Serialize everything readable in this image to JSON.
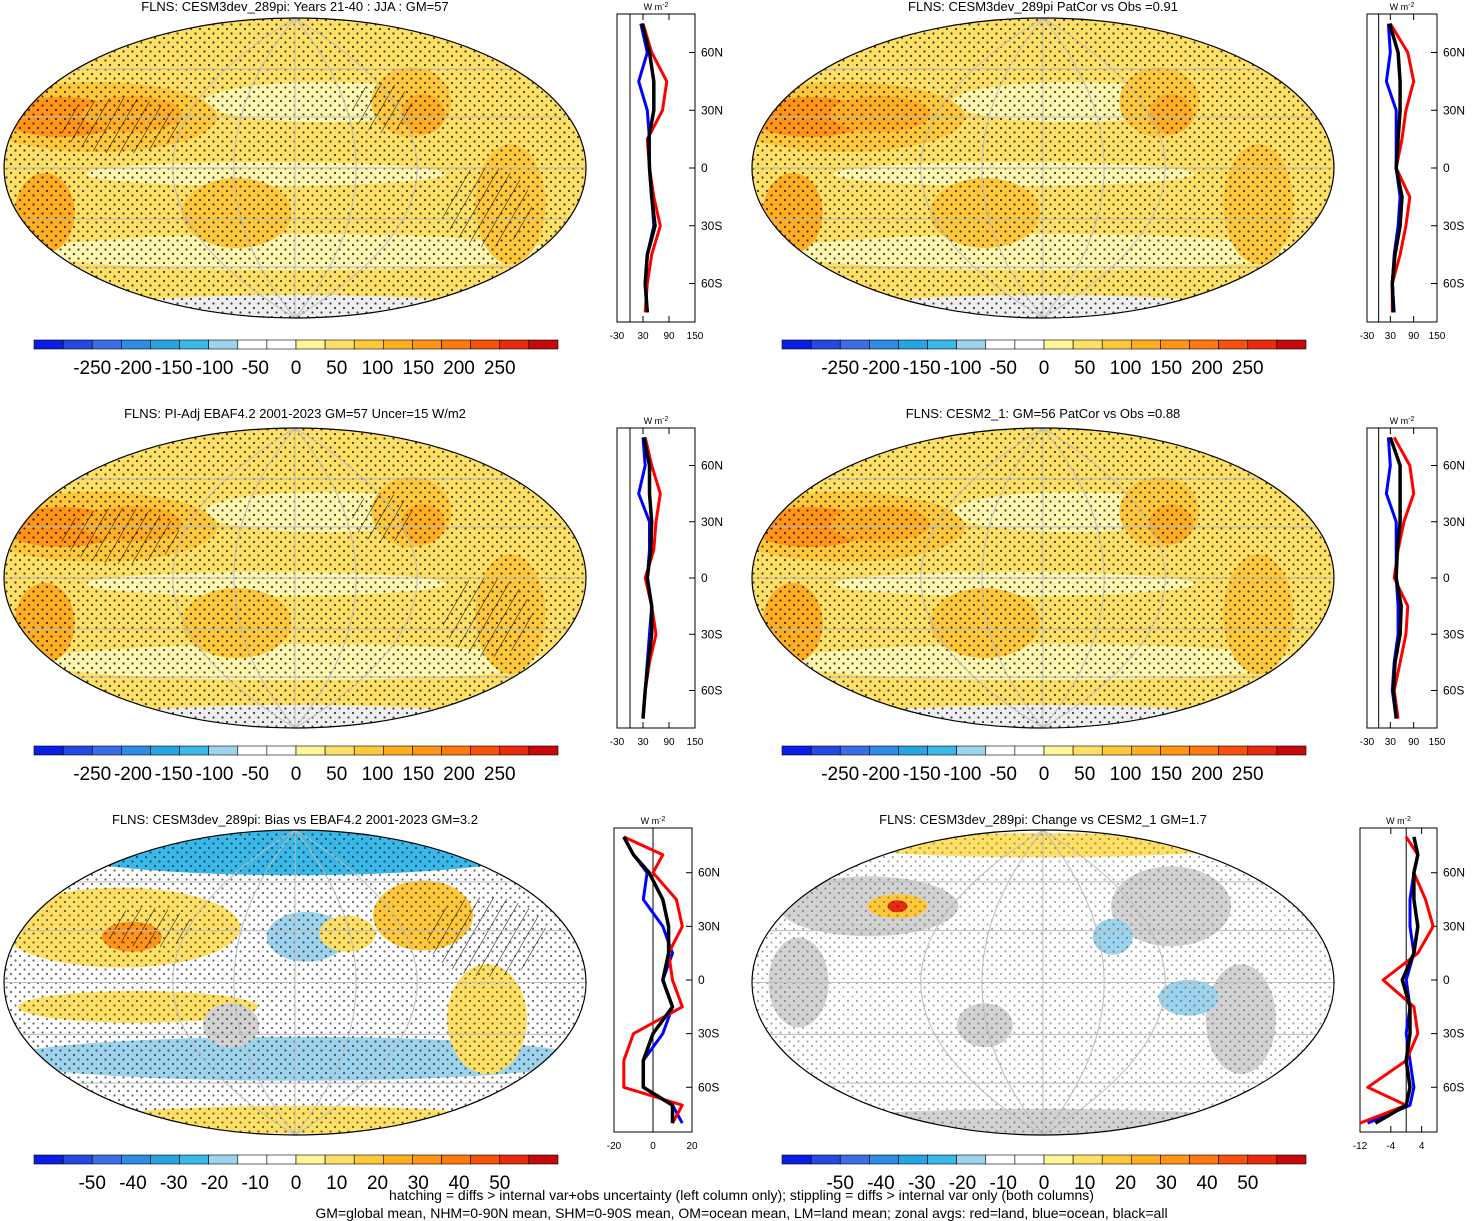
{
  "panels": [
    {
      "id": "p1",
      "title": "FLNS: CESM3dev_289pi: Years 21-40 : JJA : GM=57",
      "pattern": "abs",
      "hatch": true,
      "colorbar_ticks": [
        "-250",
        "-200",
        "-150",
        "-100",
        "-50",
        "0",
        "50",
        "100",
        "150",
        "200",
        "250"
      ],
      "zonal_xticks": [
        "-30",
        "30",
        "90",
        "150"
      ],
      "zonal_lat_ticks": [
        "60N",
        "30N",
        "0",
        "30S",
        "60S"
      ],
      "zonal_units": "W m",
      "zonal_units_sup": "-2"
    },
    {
      "id": "p2",
      "title": "FLNS: CESM3dev_289pi PatCor vs Obs =0.91",
      "pattern": "abs",
      "hatch": false,
      "colorbar_ticks": [
        "-250",
        "-200",
        "-150",
        "-100",
        "-50",
        "0",
        "50",
        "100",
        "150",
        "200",
        "250"
      ],
      "zonal_xticks": [
        "-30",
        "30",
        "90",
        "150"
      ],
      "zonal_lat_ticks": [
        "60N",
        "30N",
        "0",
        "30S",
        "60S"
      ],
      "zonal_units": "W m",
      "zonal_units_sup": "-2"
    },
    {
      "id": "p3",
      "title": "FLNS: PI-Adj EBAF4.2 2001-2023 GM=57 Uncer=15 W/m2",
      "pattern": "abs",
      "hatch": true,
      "colorbar_ticks": [
        "-250",
        "-200",
        "-150",
        "-100",
        "-50",
        "0",
        "50",
        "100",
        "150",
        "200",
        "250"
      ],
      "zonal_xticks": [
        "-30",
        "30",
        "90",
        "150"
      ],
      "zonal_lat_ticks": [
        "60N",
        "30N",
        "0",
        "30S",
        "60S"
      ],
      "zonal_units": "W m",
      "zonal_units_sup": "-2"
    },
    {
      "id": "p4",
      "title": "FLNS: CESM2_1: GM=56 PatCor vs Obs =0.88",
      "pattern": "abs",
      "hatch": false,
      "colorbar_ticks": [
        "-250",
        "-200",
        "-150",
        "-100",
        "-50",
        "0",
        "50",
        "100",
        "150",
        "200",
        "250"
      ],
      "zonal_xticks": [
        "-30",
        "30",
        "90",
        "150"
      ],
      "zonal_lat_ticks": [
        "60N",
        "30N",
        "0",
        "30S",
        "60S"
      ],
      "zonal_units": "W m",
      "zonal_units_sup": "-2"
    },
    {
      "id": "p5",
      "title": "FLNS: CESM3dev_289pi: Bias vs EBAF4.2 2001-2023 GM=3.2",
      "pattern": "bias",
      "hatch": true,
      "colorbar_ticks": [
        "-50",
        "-40",
        "-30",
        "-20",
        "-10",
        "0",
        "10",
        "20",
        "30",
        "40",
        "50"
      ],
      "zonal_xticks": [
        "-20",
        "0",
        "20"
      ],
      "zonal_lat_ticks": [
        "60N",
        "30N",
        "0",
        "30S",
        "60S"
      ],
      "zonal_units": "W m",
      "zonal_units_sup": "-2"
    },
    {
      "id": "p6",
      "title": "FLNS: CESM3dev_289pi: Change vs CESM2_1 GM=1.7",
      "pattern": "change",
      "hatch": false,
      "colorbar_ticks": [
        "-50",
        "-40",
        "-30",
        "-20",
        "-10",
        "0",
        "10",
        "20",
        "30",
        "40",
        "50"
      ],
      "zonal_xticks": [
        "-12",
        "-4",
        "4"
      ],
      "zonal_lat_ticks": [
        "60N",
        "30N",
        "0",
        "30S",
        "60S"
      ],
      "zonal_units": "W m",
      "zonal_units_sup": "-2"
    }
  ],
  "colorbar_colors": [
    "#0a1ee6",
    "#2448e2",
    "#3a6ee6",
    "#2d8be3",
    "#27a4e2",
    "#3ab8e8",
    "#9ed3ee",
    "#ffffff",
    "#ffffff",
    "#fff69a",
    "#ffe066",
    "#ffc83a",
    "#ffae22",
    "#ff9416",
    "#ff7a0e",
    "#f5500c",
    "#e82b0e",
    "#c8090b"
  ],
  "map_colors": {
    "ocean_pale": "#fff7b0",
    "yellow": "#ffe066",
    "gold": "#ffc83a",
    "orange": "#ffae22",
    "deep_orange": "#ff9416",
    "land_gray": "#d2d2d2",
    "light_blue": "#9ed3ee",
    "blue": "#3ab8e8"
  },
  "zonal_colors": {
    "land": "#ff0000",
    "ocean": "#0000ff",
    "all": "#000000"
  },
  "footer": {
    "line1": "hatching = diffs > internal var+obs uncertainty (left column only); stippling = diffs > internal var only (both columns)",
    "line2": "GM=global mean, NHM=0-90N mean, SHM=0-90S mean, OM=ocean mean, LM=land mean; zonal avgs: red=land, blue=ocean, black=all"
  },
  "chart_data": [
    {
      "type": "heatmap",
      "title": "FLNS: CESM3dev_289pi: Years 21-40 : JJA : GM=57",
      "colorbar_range": [
        -250,
        250
      ],
      "zonal_mean": {
        "lat": [
          75,
          60,
          45,
          30,
          15,
          0,
          -15,
          -30,
          -45,
          -60,
          -75
        ],
        "land": [
          30,
          50,
          85,
          75,
          40,
          45,
          55,
          70,
          50,
          40,
          35
        ],
        "ocean": [
          25,
          40,
          20,
          40,
          45,
          45,
          50,
          55,
          40,
          35,
          40
        ],
        "all": [
          28,
          45,
          55,
          55,
          43,
          45,
          50,
          58,
          40,
          35,
          40
        ]
      }
    },
    {
      "type": "heatmap",
      "title": "FLNS: CESM3dev_289pi PatCor vs Obs =0.91",
      "colorbar_range": [
        -250,
        250
      ],
      "zonal_mean": {
        "lat": [
          75,
          60,
          45,
          30,
          15,
          0,
          -15,
          -30,
          -45,
          -60,
          -75
        ],
        "land": [
          30,
          75,
          90,
          70,
          60,
          45,
          80,
          70,
          55,
          35,
          35
        ],
        "ocean": [
          25,
          30,
          20,
          45,
          45,
          45,
          55,
          50,
          40,
          35,
          40
        ],
        "all": [
          28,
          50,
          55,
          55,
          50,
          45,
          60,
          55,
          42,
          35,
          38
        ]
      }
    },
    {
      "type": "heatmap",
      "title": "FLNS: PI-Adj EBAF4.2 2001-2023 GM=57 Uncer=15 W/m2",
      "colorbar_range": [
        -250,
        250
      ],
      "zonal_mean": {
        "lat": [
          75,
          60,
          45,
          30,
          15,
          0,
          -15,
          -30,
          -45,
          -60,
          -75
        ],
        "land": [
          35,
          50,
          70,
          60,
          55,
          35,
          50,
          60,
          45,
          35,
          30
        ],
        "ocean": [
          30,
          35,
          20,
          45,
          45,
          40,
          50,
          45,
          40,
          35,
          30
        ],
        "all": [
          32,
          45,
          45,
          50,
          48,
          40,
          50,
          50,
          42,
          35,
          30
        ]
      }
    },
    {
      "type": "heatmap",
      "title": "FLNS: CESM2_1: GM=56 PatCor vs Obs =0.88",
      "colorbar_range": [
        -250,
        250
      ],
      "zonal_mean": {
        "lat": [
          75,
          60,
          45,
          30,
          15,
          0,
          -15,
          -30,
          -45,
          -60,
          -75
        ],
        "land": [
          40,
          80,
          90,
          65,
          50,
          40,
          75,
          70,
          55,
          40,
          50
        ],
        "ocean": [
          25,
          30,
          20,
          45,
          45,
          45,
          50,
          50,
          40,
          35,
          45
        ],
        "all": [
          30,
          55,
          55,
          55,
          48,
          45,
          58,
          55,
          42,
          38,
          45
        ]
      }
    },
    {
      "type": "heatmap",
      "title": "FLNS: CESM3dev_289pi: Bias vs EBAF4.2 2001-2023 GM=3.2",
      "colorbar_range": [
        -50,
        50
      ],
      "zonal_mean": {
        "lat": [
          80,
          70,
          60,
          45,
          30,
          15,
          0,
          -15,
          -30,
          -45,
          -60,
          -70,
          -80
        ],
        "land": [
          -15,
          5,
          0,
          12,
          15,
          8,
          10,
          15,
          -10,
          -15,
          -15,
          15,
          10
        ],
        "ocean": [
          -15,
          -10,
          -3,
          -5,
          5,
          10,
          5,
          10,
          5,
          -5,
          -5,
          10,
          15
        ],
        "all": [
          -15,
          -10,
          -2,
          5,
          8,
          8,
          5,
          10,
          0,
          -5,
          -5,
          10,
          10
        ]
      }
    },
    {
      "type": "heatmap",
      "title": "FLNS: CESM3dev_289pi: Change vs CESM2_1 GM=1.7",
      "colorbar_range": [
        -50,
        50
      ],
      "zonal_mean": {
        "lat": [
          80,
          70,
          60,
          45,
          30,
          15,
          0,
          -15,
          -30,
          -45,
          -60,
          -70,
          -80
        ],
        "land": [
          0,
          3,
          2,
          5,
          7,
          3,
          -6,
          2,
          3,
          0,
          -10,
          0,
          -12
        ],
        "ocean": [
          2,
          3,
          2,
          1,
          1,
          2,
          0,
          1,
          0,
          1,
          2,
          1,
          -10
        ],
        "all": [
          2,
          3,
          2,
          2,
          3,
          2,
          -1,
          1,
          1,
          0,
          1,
          0,
          -8
        ]
      }
    }
  ]
}
